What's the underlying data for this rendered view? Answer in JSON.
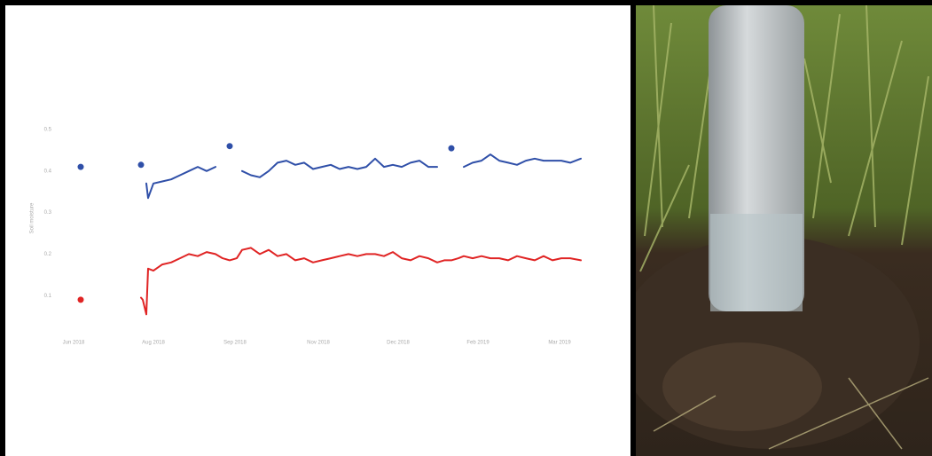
{
  "chart_data": {
    "type": "line",
    "y_label": "Soil moisture",
    "x": [
      14,
      30,
      48,
      49,
      51,
      52,
      55,
      60,
      65,
      70,
      75,
      80,
      85,
      90,
      94,
      98,
      102,
      105,
      110,
      115,
      120,
      125,
      130,
      135,
      140,
      145,
      150,
      155,
      160,
      165,
      170,
      175,
      180,
      185,
      190,
      195,
      200,
      205,
      210,
      215,
      219,
      223,
      227,
      230,
      235,
      240,
      245,
      250,
      255,
      260,
      265,
      270,
      275,
      280,
      285,
      290,
      296
    ],
    "xlim": [
      0,
      300
    ],
    "xticks": [
      {
        "value": 10,
        "label": "Jun 2018"
      },
      {
        "value": 55,
        "label": "Aug 2018"
      },
      {
        "value": 101,
        "label": "Sep 2018"
      },
      {
        "value": 148,
        "label": "Nov 2018"
      },
      {
        "value": 193,
        "label": "Dec 2018"
      },
      {
        "value": 238,
        "label": "Feb 2019"
      },
      {
        "value": 284,
        "label": "Mar 2019"
      }
    ],
    "ylim": [
      0,
      0.5
    ],
    "yticks": [
      0.1,
      0.2,
      0.3,
      0.4,
      0.5
    ],
    "grid": false,
    "series": [
      {
        "color": "#2f4fa8",
        "values": [
          0.41,
          null,
          0.415,
          null,
          0.37,
          0.335,
          0.37,
          0.375,
          0.38,
          0.39,
          0.4,
          0.41,
          0.4,
          0.41,
          null,
          0.46,
          null,
          0.4,
          0.39,
          0.385,
          0.4,
          0.42,
          0.425,
          0.415,
          0.42,
          0.405,
          0.41,
          0.415,
          0.405,
          0.41,
          0.405,
          0.41,
          0.43,
          0.41,
          0.415,
          0.41,
          0.42,
          0.425,
          0.41,
          0.41,
          null,
          0.455,
          null,
          0.41,
          0.42,
          0.425,
          0.44,
          0.425,
          0.42,
          0.415,
          0.425,
          0.43,
          0.425,
          0.425,
          0.425,
          0.42,
          0.43
        ]
      },
      {
        "color": "#e02424",
        "values": [
          0.09,
          null,
          0.095,
          0.09,
          0.055,
          0.165,
          0.16,
          0.175,
          0.18,
          0.19,
          0.2,
          0.195,
          0.205,
          0.2,
          0.19,
          0.185,
          0.19,
          0.21,
          0.215,
          0.2,
          0.21,
          0.195,
          0.2,
          0.185,
          0.19,
          0.18,
          0.185,
          0.19,
          0.195,
          0.2,
          0.195,
          0.2,
          0.2,
          0.195,
          0.205,
          0.19,
          0.185,
          0.195,
          0.19,
          0.18,
          0.185,
          0.185,
          0.19,
          0.195,
          0.19,
          0.195,
          0.19,
          0.19,
          0.185,
          0.195,
          0.19,
          0.185,
          0.195,
          0.185,
          0.19,
          0.19,
          0.185
        ]
      }
    ]
  }
}
